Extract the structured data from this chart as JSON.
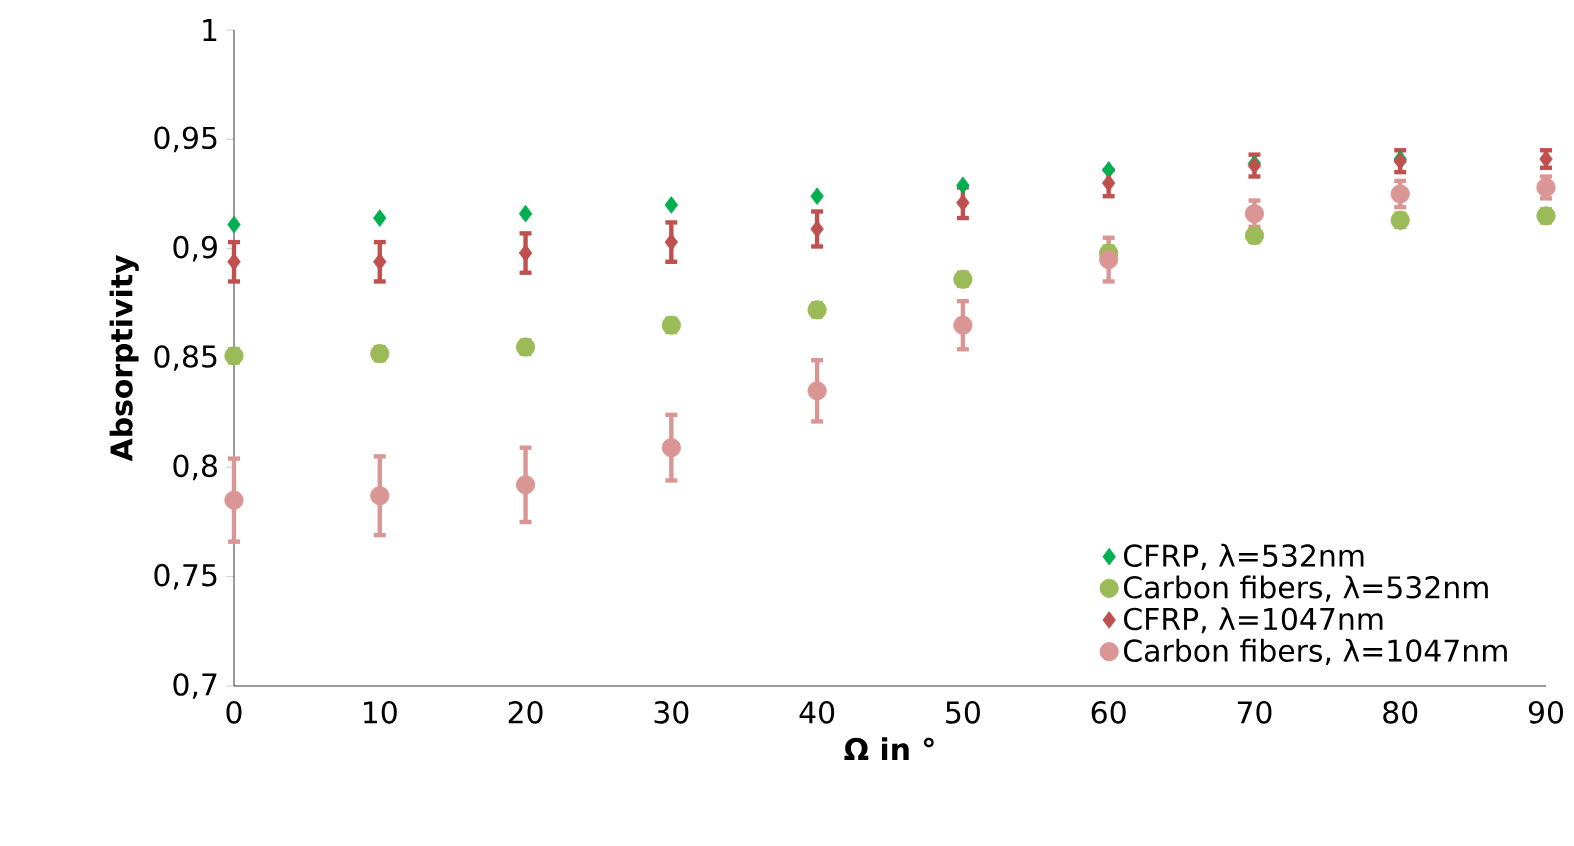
{
  "chart_data": {
    "type": "scatter",
    "xlabel": "Ω in °",
    "ylabel": "Absorptivity",
    "x": [
      0,
      10,
      20,
      30,
      40,
      50,
      60,
      70,
      80,
      90
    ],
    "series": [
      {
        "name": "CFRP, λ=532nm",
        "color": "#00b050",
        "marker": "diamond",
        "values": [
          0.911,
          0.914,
          0.916,
          0.92,
          0.924,
          0.929,
          0.936,
          0.939,
          0.941,
          null
        ]
      },
      {
        "name": "Carbon fibers, λ=532nm",
        "color": "#9bbb59",
        "marker": "circle",
        "values": [
          0.851,
          0.852,
          0.855,
          0.865,
          0.872,
          0.886,
          0.898,
          0.906,
          0.913,
          0.915
        ],
        "errors": [
          0.003,
          0.003,
          0.003,
          0.003,
          0.003,
          0.003,
          0.003,
          0.003,
          0.003,
          0.003
        ]
      },
      {
        "name": "CFRP, λ=1047nm",
        "color": "#c0504d",
        "marker": "diamond",
        "values": [
          0.894,
          0.894,
          0.898,
          0.903,
          0.909,
          0.921,
          0.93,
          0.938,
          0.94,
          0.941
        ],
        "errors": [
          0.009,
          0.009,
          0.009,
          0.009,
          0.008,
          0.007,
          0.006,
          0.005,
          0.005,
          0.004
        ]
      },
      {
        "name": "Carbon fibers, λ=1047nm",
        "color": "#d99694",
        "marker": "circle",
        "values": [
          0.785,
          0.787,
          0.792,
          0.809,
          0.835,
          0.865,
          0.895,
          0.916,
          0.925,
          0.928
        ],
        "errors": [
          0.019,
          0.018,
          0.017,
          0.015,
          0.014,
          0.011,
          0.01,
          0.006,
          0.006,
          0.005
        ]
      }
    ],
    "xlim": [
      0,
      90
    ],
    "xticks": [
      0,
      10,
      20,
      30,
      40,
      50,
      60,
      70,
      80,
      90
    ],
    "ylim": [
      0.7,
      1
    ],
    "yticks": [
      {
        "value": 0.7,
        "label": "0,7"
      },
      {
        "value": 0.75,
        "label": "0,75"
      },
      {
        "value": 0.8,
        "label": "0,8"
      },
      {
        "value": 0.85,
        "label": "0,85"
      },
      {
        "value": 0.9,
        "label": "0,9"
      },
      {
        "value": 0.95,
        "label": "0,95"
      },
      {
        "value": 1,
        "label": "1"
      }
    ],
    "legend": "bottom right",
    "grid": false
  }
}
